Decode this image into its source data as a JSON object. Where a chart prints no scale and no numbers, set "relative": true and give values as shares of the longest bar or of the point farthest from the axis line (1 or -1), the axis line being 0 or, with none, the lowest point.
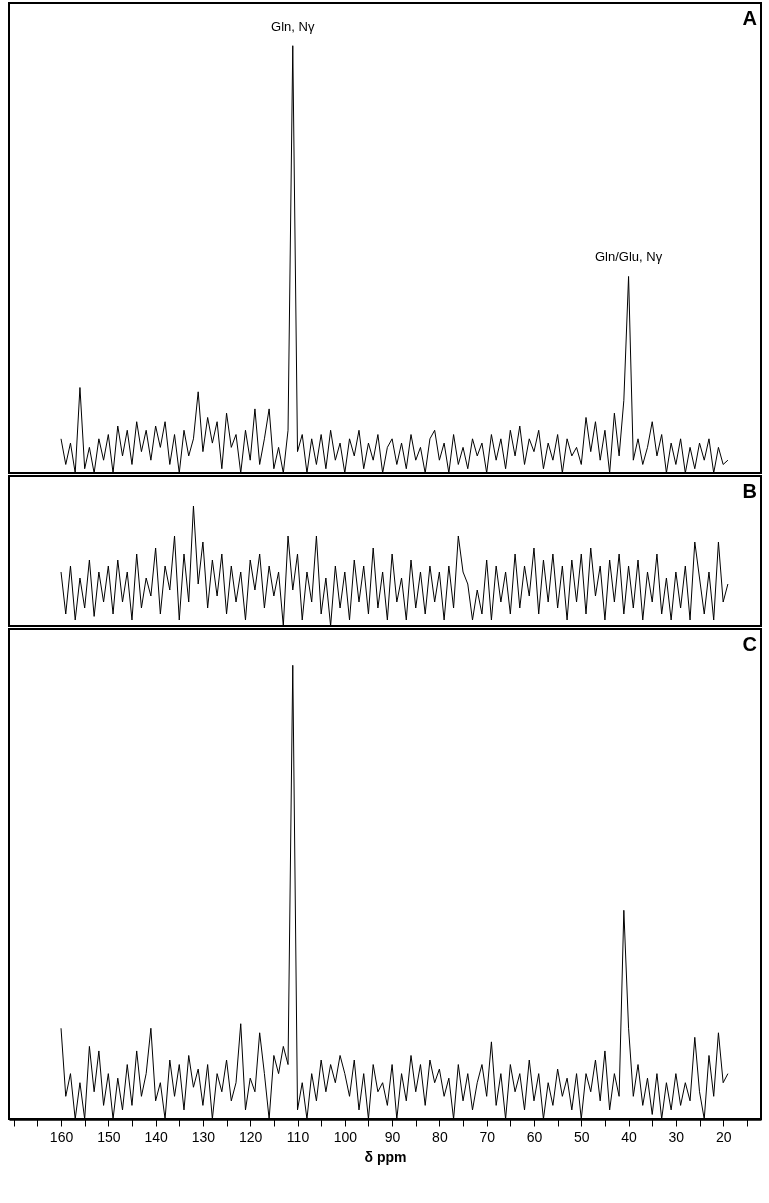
{
  "chart_data": [
    {
      "type": "line",
      "relative": true,
      "tick_labels": false,
      "color": "#000000",
      "xlim": [
        171,
        12
      ],
      "x": [
        160,
        159,
        158,
        157,
        156,
        155,
        154,
        153,
        152,
        151,
        150,
        149,
        148,
        147,
        146,
        145,
        144,
        143,
        142,
        141,
        140,
        139,
        138,
        137,
        136,
        135,
        134,
        133,
        132,
        131,
        130,
        129,
        128,
        127,
        126,
        125,
        124,
        123,
        122,
        121,
        120,
        119,
        118,
        117,
        116,
        115,
        114,
        113,
        112,
        111,
        110,
        109,
        108,
        107,
        106,
        105,
        104,
        103,
        102,
        101,
        100,
        99,
        98,
        97,
        96,
        95,
        94,
        93,
        92,
        91,
        90,
        89,
        88,
        87,
        86,
        85,
        84,
        83,
        82,
        81,
        80,
        79,
        78,
        77,
        76,
        75,
        74,
        73,
        72,
        71,
        70,
        69,
        68,
        67,
        66,
        65,
        64,
        63,
        62,
        61,
        60,
        59,
        58,
        57,
        56,
        55,
        54,
        53,
        52,
        51,
        50,
        49,
        48,
        47,
        46,
        45,
        44,
        43,
        42,
        41,
        40,
        39,
        38,
        37,
        36,
        35,
        34,
        33,
        32,
        31,
        30,
        29,
        28,
        27,
        26,
        25,
        24,
        23,
        22,
        21,
        20,
        19
      ],
      "values": [
        0.08,
        0.02,
        0.07,
        0.0,
        0.2,
        0.01,
        0.06,
        0.0,
        0.08,
        0.03,
        0.09,
        0.0,
        0.11,
        0.04,
        0.1,
        0.02,
        0.12,
        0.05,
        0.1,
        0.03,
        0.11,
        0.06,
        0.12,
        0.02,
        0.09,
        0.0,
        0.1,
        0.04,
        0.08,
        0.19,
        0.05,
        0.13,
        0.07,
        0.12,
        0.01,
        0.14,
        0.06,
        0.09,
        0.0,
        0.1,
        0.03,
        0.15,
        0.02,
        0.08,
        0.15,
        0.01,
        0.06,
        0.0,
        0.1,
        1.0,
        0.05,
        0.09,
        0.0,
        0.08,
        0.02,
        0.09,
        0.01,
        0.1,
        0.03,
        0.07,
        0.0,
        0.08,
        0.04,
        0.1,
        0.01,
        0.07,
        0.03,
        0.09,
        0.0,
        0.06,
        0.08,
        0.02,
        0.07,
        0.01,
        0.09,
        0.03,
        0.06,
        0.0,
        0.08,
        0.1,
        0.03,
        0.07,
        0.0,
        0.09,
        0.02,
        0.06,
        0.01,
        0.08,
        0.04,
        0.07,
        0.0,
        0.09,
        0.03,
        0.08,
        0.01,
        0.1,
        0.04,
        0.11,
        0.02,
        0.08,
        0.05,
        0.1,
        0.01,
        0.07,
        0.03,
        0.09,
        0.0,
        0.08,
        0.04,
        0.06,
        0.02,
        0.13,
        0.05,
        0.12,
        0.03,
        0.1,
        0.0,
        0.14,
        0.04,
        0.17,
        0.46,
        0.03,
        0.08,
        0.02,
        0.06,
        0.12,
        0.04,
        0.09,
        0.0,
        0.07,
        0.02,
        0.08,
        0.0,
        0.06,
        0.01,
        0.07,
        0.03,
        0.08,
        0.0,
        0.06,
        0.02,
        0.03
      ],
      "annotations": [
        "A",
        {
          "text": "Gln, Nγ",
          "x": 111,
          "y": 1.0
        },
        {
          "text": "Gln/Glu, Nγ",
          "x": 40,
          "y": 0.46
        }
      ]
    },
    {
      "type": "line",
      "relative": true,
      "tick_labels": false,
      "color": "#000000",
      "xlim": [
        171,
        12
      ],
      "x": [
        160,
        159,
        158,
        157,
        156,
        155,
        154,
        153,
        152,
        151,
        150,
        149,
        148,
        147,
        146,
        145,
        144,
        143,
        142,
        141,
        140,
        139,
        138,
        137,
        136,
        135,
        134,
        133,
        132,
        131,
        130,
        129,
        128,
        127,
        126,
        125,
        124,
        123,
        122,
        121,
        120,
        119,
        118,
        117,
        116,
        115,
        114,
        113,
        112,
        111,
        110,
        109,
        108,
        107,
        106,
        105,
        104,
        103,
        102,
        101,
        100,
        99,
        98,
        97,
        96,
        95,
        94,
        93,
        92,
        91,
        90,
        89,
        88,
        87,
        86,
        85,
        84,
        83,
        82,
        81,
        80,
        79,
        78,
        77,
        76,
        75,
        74,
        73,
        72,
        71,
        70,
        69,
        68,
        67,
        66,
        65,
        64,
        63,
        62,
        61,
        60,
        59,
        58,
        57,
        56,
        55,
        54,
        53,
        52,
        51,
        50,
        49,
        48,
        47,
        46,
        45,
        44,
        43,
        42,
        41,
        40,
        39,
        38,
        37,
        36,
        35,
        34,
        33,
        32,
        31,
        30,
        29,
        28,
        27,
        26,
        25,
        24,
        23,
        22,
        21,
        20,
        19
      ],
      "values": [
        0.45,
        0.1,
        0.5,
        0.05,
        0.4,
        0.15,
        0.55,
        0.08,
        0.45,
        0.2,
        0.5,
        0.1,
        0.55,
        0.2,
        0.45,
        0.05,
        0.6,
        0.15,
        0.4,
        0.25,
        0.65,
        0.1,
        0.5,
        0.3,
        0.75,
        0.05,
        0.6,
        0.2,
        1.0,
        0.35,
        0.7,
        0.15,
        0.55,
        0.25,
        0.6,
        0.1,
        0.5,
        0.2,
        0.45,
        0.05,
        0.55,
        0.3,
        0.6,
        0.15,
        0.5,
        0.25,
        0.45,
        0.0,
        0.75,
        0.3,
        0.6,
        0.05,
        0.45,
        0.2,
        0.75,
        0.1,
        0.4,
        0.0,
        0.5,
        0.15,
        0.45,
        0.05,
        0.55,
        0.2,
        0.5,
        0.1,
        0.65,
        0.15,
        0.45,
        0.05,
        0.6,
        0.2,
        0.4,
        0.05,
        0.55,
        0.15,
        0.45,
        0.1,
        0.5,
        0.2,
        0.45,
        0.05,
        0.5,
        0.15,
        0.75,
        0.45,
        0.35,
        0.05,
        0.3,
        0.1,
        0.55,
        0.05,
        0.5,
        0.2,
        0.45,
        0.1,
        0.6,
        0.15,
        0.5,
        0.25,
        0.65,
        0.1,
        0.55,
        0.2,
        0.6,
        0.15,
        0.5,
        0.05,
        0.55,
        0.2,
        0.6,
        0.1,
        0.65,
        0.25,
        0.5,
        0.05,
        0.55,
        0.2,
        0.6,
        0.1,
        0.5,
        0.15,
        0.55,
        0.05,
        0.45,
        0.2,
        0.6,
        0.1,
        0.4,
        0.05,
        0.45,
        0.15,
        0.5,
        0.05,
        0.7,
        0.4,
        0.1,
        0.45,
        0.05,
        0.7,
        0.2,
        0.35
      ],
      "annotations": [
        "B"
      ]
    },
    {
      "type": "line",
      "relative": true,
      "tick_labels": "x",
      "color": "#000000",
      "xlim": [
        171,
        12
      ],
      "xlabel": "δ ppm",
      "xticks": [
        {
          "value": 170,
          "label": null
        },
        {
          "value": 165,
          "label": null
        },
        160,
        {
          "value": 155,
          "label": null
        },
        150,
        {
          "value": 145,
          "label": null
        },
        140,
        {
          "value": 135,
          "label": null
        },
        130,
        {
          "value": 125,
          "label": null
        },
        120,
        {
          "value": 115,
          "label": null
        },
        110,
        {
          "value": 105,
          "label": null
        },
        100,
        {
          "value": 95,
          "label": null
        },
        90,
        {
          "value": 85,
          "label": null
        },
        80,
        {
          "value": 75,
          "label": null
        },
        70,
        {
          "value": 65,
          "label": null
        },
        60,
        {
          "value": 55,
          "label": null
        },
        50,
        {
          "value": 45,
          "label": null
        },
        40,
        {
          "value": 35,
          "label": null
        },
        30,
        {
          "value": 25,
          "label": null
        },
        20,
        {
          "value": 15,
          "label": null
        }
      ],
      "x": [
        160,
        159,
        158,
        157,
        156,
        155,
        154,
        153,
        152,
        151,
        150,
        149,
        148,
        147,
        146,
        145,
        144,
        143,
        142,
        141,
        140,
        139,
        138,
        137,
        136,
        135,
        134,
        133,
        132,
        131,
        130,
        129,
        128,
        127,
        126,
        125,
        124,
        123,
        122,
        121,
        120,
        119,
        118,
        117,
        116,
        115,
        114,
        113,
        112,
        111,
        110,
        109,
        108,
        107,
        106,
        105,
        104,
        103,
        102,
        101,
        100,
        99,
        98,
        97,
        96,
        95,
        94,
        93,
        92,
        91,
        90,
        89,
        88,
        87,
        86,
        85,
        84,
        83,
        82,
        81,
        80,
        79,
        78,
        77,
        76,
        75,
        74,
        73,
        72,
        71,
        70,
        69,
        68,
        67,
        66,
        65,
        64,
        63,
        62,
        61,
        60,
        59,
        58,
        57,
        56,
        55,
        54,
        53,
        52,
        51,
        50,
        49,
        48,
        47,
        46,
        45,
        44,
        43,
        42,
        41,
        40,
        39,
        38,
        37,
        36,
        35,
        34,
        33,
        32,
        31,
        30,
        29,
        28,
        27,
        26,
        25,
        24,
        23,
        22,
        21,
        20,
        19
      ],
      "values": [
        0.2,
        0.05,
        0.1,
        0.0,
        0.08,
        0.0,
        0.16,
        0.06,
        0.15,
        0.03,
        0.1,
        0.0,
        0.09,
        0.02,
        0.12,
        0.03,
        0.15,
        0.05,
        0.1,
        0.2,
        0.04,
        0.08,
        0.0,
        0.13,
        0.05,
        0.12,
        0.02,
        0.14,
        0.07,
        0.11,
        0.03,
        0.12,
        0.0,
        0.1,
        0.06,
        0.13,
        0.04,
        0.08,
        0.21,
        0.02,
        0.09,
        0.06,
        0.19,
        0.1,
        0.0,
        0.14,
        0.1,
        0.16,
        0.12,
        1.0,
        0.02,
        0.08,
        0.0,
        0.1,
        0.04,
        0.13,
        0.06,
        0.12,
        0.08,
        0.14,
        0.1,
        0.05,
        0.13,
        0.02,
        0.1,
        0.0,
        0.12,
        0.06,
        0.08,
        0.03,
        0.12,
        0.0,
        0.1,
        0.04,
        0.14,
        0.06,
        0.12,
        0.03,
        0.13,
        0.08,
        0.11,
        0.05,
        0.09,
        0.0,
        0.12,
        0.04,
        0.1,
        0.02,
        0.08,
        0.12,
        0.05,
        0.17,
        0.03,
        0.1,
        0.0,
        0.12,
        0.06,
        0.1,
        0.02,
        0.13,
        0.04,
        0.1,
        0.0,
        0.08,
        0.03,
        0.11,
        0.05,
        0.09,
        0.02,
        0.1,
        0.0,
        0.1,
        0.06,
        0.13,
        0.04,
        0.15,
        0.02,
        0.1,
        0.05,
        0.46,
        0.2,
        0.05,
        0.12,
        0.03,
        0.09,
        0.01,
        0.1,
        0.0,
        0.08,
        0.02,
        0.1,
        0.03,
        0.08,
        0.04,
        0.18,
        0.06,
        0.0,
        0.14,
        0.05,
        0.19,
        0.08,
        0.1
      ],
      "annotations": [
        "C"
      ]
    }
  ]
}
